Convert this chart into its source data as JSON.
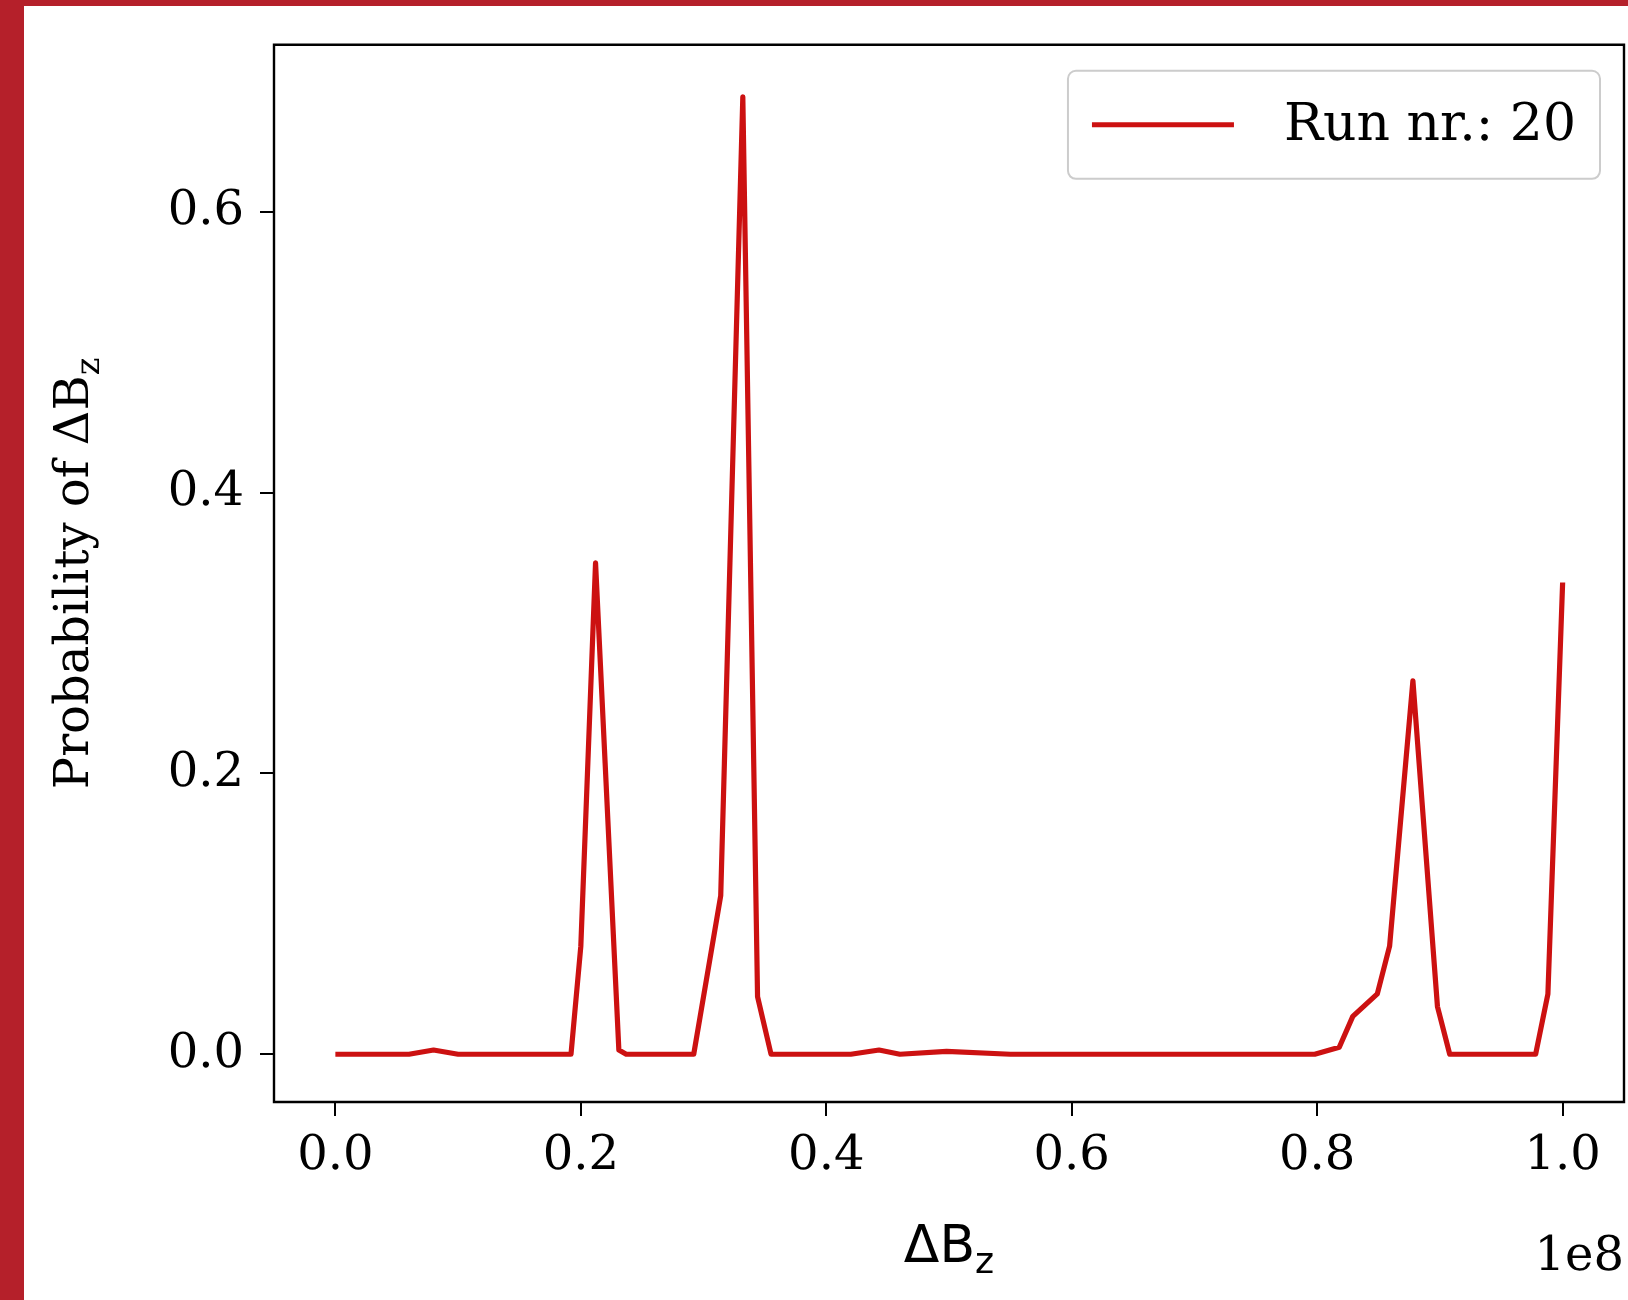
{
  "chart_data": {
    "type": "line",
    "xlabel": "ΔB$_{z}$",
    "ylabel": "Probability of ΔB$_{z}$",
    "series": [
      {
        "name": "Run nr.: 20",
        "color": "#cc1111",
        "x": [
          0,
          0.06,
          0.08,
          0.1,
          0.192,
          0.2,
          0.212,
          0.231,
          0.237,
          0.292,
          0.314,
          0.332,
          0.344,
          0.355,
          0.42,
          0.443,
          0.46,
          0.498,
          0.55,
          0.798,
          0.818,
          0.829,
          0.849,
          0.859,
          0.878,
          0.898,
          0.908,
          0.978,
          0.988,
          1.0
        ],
        "values": [
          0,
          0,
          0.003,
          0,
          0,
          0.077,
          0.35,
          0.003,
          0,
          0,
          0.113,
          0.682,
          0.041,
          0,
          0,
          0.003,
          0,
          0.002,
          0,
          0,
          0.005,
          0.027,
          0.043,
          0.077,
          0.266,
          0.034,
          0,
          0,
          0.043,
          0.336
        ]
      }
    ],
    "xlim": [
      -0.05,
      1.05
    ],
    "xticks": [
      {
        "value": 0,
        "label": "0.0"
      },
      0.2,
      0.4,
      0.6,
      0.8,
      {
        "value": 1,
        "label": "1.0"
      }
    ],
    "ylim": [
      -0.034,
      0.719
    ],
    "yticks": [
      {
        "value": 0,
        "label": "0.0"
      },
      {
        "value": 0.2,
        "label": "0.2"
      },
      {
        "value": 0.4,
        "label": "0.4"
      },
      {
        "value": 0.6,
        "label": "0.6"
      }
    ],
    "annotations": [
      "1e8"
    ],
    "legend": "top right",
    "grid": false,
    "marker": "none",
    "line_style": "solid"
  }
}
